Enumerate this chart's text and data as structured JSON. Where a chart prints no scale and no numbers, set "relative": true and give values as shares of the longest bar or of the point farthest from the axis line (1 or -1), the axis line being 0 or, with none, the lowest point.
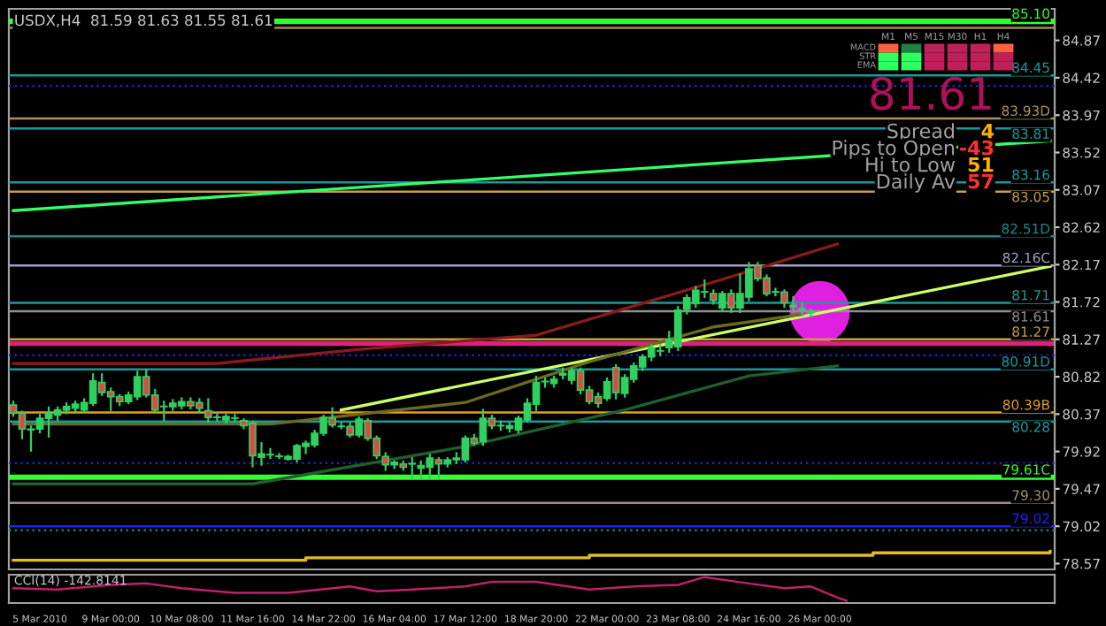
{
  "chart_data": [
    {
      "type": "candlestick",
      "title": "USDX,H4  81.59 81.63 81.55 81.61",
      "categories": [
        null,
        null,
        null,
        "5 Mar 2010",
        null,
        null,
        null,
        null,
        null,
        null,
        null,
        "9 Mar 00:00",
        null,
        null,
        null,
        null,
        null,
        null,
        null,
        "10 Mar 08:00",
        null,
        null,
        null,
        null,
        null,
        null,
        null,
        "11 Mar 16:00",
        null,
        null,
        null,
        null,
        null,
        null,
        null,
        "14 Mar 22:00",
        null,
        null,
        null,
        null,
        null,
        null,
        null,
        "16 Mar 04:00",
        null,
        null,
        null,
        null,
        null,
        null,
        null,
        "17 Mar 12:00",
        null,
        null,
        null,
        null,
        null,
        null,
        null,
        "18 Mar 20:00",
        null,
        null,
        null,
        null,
        null,
        null,
        null,
        "22 Mar 00:00",
        null,
        null,
        null,
        null,
        null,
        null,
        null,
        "23 Mar 08:00",
        null,
        null,
        null,
        null,
        null,
        null,
        null,
        "24 Mar 16:00",
        null,
        null,
        null,
        null,
        null,
        null,
        null,
        "26 Mar 00:00",
        null,
        null,
        null,
        null,
        null,
        null,
        null,
        null,
        null,
        null,
        null,
        null,
        null,
        null,
        null,
        null,
        null,
        null,
        null,
        null,
        null,
        null,
        null,
        null,
        null,
        null
      ],
      "colors": [
        "#e04848",
        "#e04848",
        "#e04848",
        "#30d060",
        "#30d060",
        "#30d060",
        "#30d060",
        "#30d060",
        "#30d060",
        "#30d060",
        "#e04848",
        "#e04848",
        "#e04848",
        "#30d060",
        "#30d060",
        "#e04848",
        "#e04848",
        "#30d060",
        "#30d060",
        "#30d060",
        "#e04848",
        "#e04848",
        "#e04848",
        "#30d060",
        "#30d060",
        "#30d060",
        "#e04848",
        "#e04848",
        "#30d060",
        "#30d060",
        "#30d060",
        "#30d060",
        "#30d060",
        "#30d060",
        "#30d060",
        "#30d060",
        "#e04848",
        "#30d060",
        "#e04848",
        "#30d060",
        "#e04848",
        "#e04848",
        "#e04848",
        "#30d060",
        "#e04848",
        "#30d060",
        "#30d060",
        "#30d060",
        "#e04848",
        "#30d060",
        "#30d060",
        "#30d060",
        "#e04848",
        "#30d060",
        "#e04848",
        "#30d060",
        "#30d060",
        "#30d060",
        "#30d060",
        "#30d060",
        "#30d060",
        "#30d060",
        "#30d060",
        "#30d060",
        "#e04848",
        "#e04848",
        "#e04848",
        "#30d060",
        "#e04848",
        "#30d060",
        "#30d060",
        "#30d060",
        "#30d060",
        "#30d060",
        "#30d060",
        "#30d060",
        "#30d060",
        "#30d060",
        "#e04848",
        "#e04848",
        "#30d060",
        "#e04848",
        "#30d060",
        "#30d060",
        "#e04848",
        "#e04848",
        "#30d060",
        "#e04848",
        "#e04848",
        "#e04848",
        "#30d060",
        null,
        null,
        null,
        null,
        null,
        null,
        null,
        null,
        null,
        null,
        null,
        null,
        null,
        null,
        null,
        null,
        null,
        null,
        null,
        null,
        null,
        null,
        null,
        null,
        null,
        null,
        null
      ],
      "ohlc": [
        [
          80.48,
          80.52,
          80.35,
          80.38
        ],
        [
          80.38,
          80.4,
          80.08,
          80.19
        ],
        [
          80.19,
          80.22,
          79.93,
          80.18
        ],
        [
          80.19,
          80.36,
          80.15,
          80.32
        ],
        [
          80.32,
          80.45,
          80.1,
          80.38
        ],
        [
          80.36,
          80.45,
          80.3,
          80.42
        ],
        [
          80.42,
          80.5,
          80.38,
          80.46
        ],
        [
          80.44,
          80.52,
          80.4,
          80.49
        ],
        [
          80.42,
          80.55,
          80.4,
          80.51
        ],
        [
          80.5,
          80.85,
          80.48,
          80.77
        ],
        [
          80.75,
          80.85,
          80.6,
          80.63
        ],
        [
          80.64,
          80.68,
          80.42,
          80.58
        ],
        [
          80.58,
          80.6,
          80.48,
          80.52
        ],
        [
          80.52,
          80.63,
          80.5,
          80.6
        ],
        [
          80.58,
          80.88,
          80.55,
          80.82
        ],
        [
          80.82,
          80.9,
          80.58,
          80.6
        ],
        [
          80.6,
          80.66,
          80.4,
          80.42
        ],
        [
          80.46,
          80.52,
          80.3,
          80.46
        ],
        [
          80.46,
          80.54,
          80.42,
          80.5
        ],
        [
          80.47,
          80.56,
          80.44,
          80.52
        ],
        [
          80.52,
          80.56,
          80.44,
          80.47
        ],
        [
          80.51,
          80.55,
          80.4,
          80.44
        ],
        [
          80.41,
          80.55,
          80.28,
          80.33
        ],
        [
          80.33,
          80.38,
          80.3,
          80.33
        ],
        [
          80.3,
          80.36,
          80.27,
          80.34
        ],
        [
          80.32,
          80.36,
          80.29,
          80.32
        ],
        [
          80.29,
          80.31,
          80.2,
          80.23
        ],
        [
          80.26,
          80.28,
          79.74,
          79.87
        ],
        [
          79.85,
          80.02,
          79.76,
          79.89
        ],
        [
          79.88,
          79.95,
          79.84,
          79.88
        ],
        [
          79.86,
          79.89,
          79.84,
          79.86
        ],
        [
          79.83,
          79.87,
          79.82,
          79.86
        ],
        [
          79.83,
          80.0,
          79.8,
          79.99
        ],
        [
          79.98,
          80.04,
          79.9,
          80.02
        ],
        [
          80.0,
          80.17,
          79.98,
          80.14
        ],
        [
          80.14,
          80.35,
          80.12,
          80.33
        ],
        [
          80.32,
          80.44,
          80.22,
          80.24
        ],
        [
          80.22,
          80.26,
          80.2,
          80.22
        ],
        [
          80.22,
          80.26,
          80.1,
          80.12
        ],
        [
          80.12,
          80.33,
          80.1,
          80.31
        ],
        [
          80.29,
          80.31,
          80.06,
          80.08
        ],
        [
          80.08,
          80.1,
          79.84,
          79.87
        ],
        [
          79.86,
          79.9,
          79.7,
          79.76
        ],
        [
          79.76,
          79.8,
          79.72,
          79.79
        ],
        [
          79.77,
          79.8,
          79.7,
          79.73
        ],
        [
          79.77,
          79.84,
          79.6,
          79.77
        ],
        [
          79.72,
          79.8,
          79.6,
          79.75
        ],
        [
          79.73,
          79.88,
          79.6,
          79.84
        ],
        [
          79.82,
          79.84,
          79.6,
          79.77
        ],
        [
          79.77,
          79.84,
          79.74,
          79.82
        ],
        [
          79.82,
          79.9,
          79.78,
          79.84
        ],
        [
          79.82,
          80.1,
          79.8,
          80.08
        ],
        [
          80.08,
          80.12,
          80.0,
          80.02
        ],
        [
          80.04,
          80.42,
          80.0,
          80.32
        ],
        [
          80.32,
          80.35,
          80.2,
          80.23
        ],
        [
          80.23,
          80.28,
          80.18,
          80.23
        ],
        [
          80.2,
          80.26,
          80.16,
          80.23
        ],
        [
          80.18,
          80.34,
          80.15,
          80.32
        ],
        [
          80.3,
          80.55,
          80.28,
          80.5
        ],
        [
          80.49,
          80.82,
          80.42,
          80.75
        ],
        [
          80.76,
          80.8,
          80.7,
          80.76
        ],
        [
          80.74,
          80.82,
          80.7,
          80.79
        ],
        [
          80.84,
          80.92,
          80.8,
          80.86
        ],
        [
          80.78,
          80.92,
          80.74,
          80.89
        ],
        [
          80.89,
          80.92,
          80.62,
          80.66
        ],
        [
          80.66,
          80.7,
          80.5,
          80.52
        ],
        [
          80.58,
          80.62,
          80.46,
          80.5
        ],
        [
          80.56,
          80.8,
          80.54,
          80.76
        ],
        [
          80.93,
          80.96,
          80.56,
          80.63
        ],
        [
          80.62,
          80.84,
          80.58,
          80.81
        ],
        [
          80.79,
          80.98,
          80.76,
          80.95
        ],
        [
          80.94,
          81.08,
          80.9,
          81.06
        ],
        [
          81.06,
          81.2,
          81.02,
          81.17
        ],
        [
          81.13,
          81.2,
          81.08,
          81.13
        ],
        [
          81.17,
          81.36,
          81.12,
          81.27
        ],
        [
          81.18,
          81.66,
          81.14,
          81.62
        ],
        [
          81.63,
          81.8,
          81.58,
          81.77
        ],
        [
          81.7,
          81.9,
          81.66,
          81.86
        ],
        [
          81.84,
          81.98,
          81.78,
          81.84
        ],
        [
          81.82,
          81.86,
          81.7,
          81.74
        ],
        [
          81.65,
          81.84,
          81.62,
          81.82
        ],
        [
          81.82,
          81.86,
          81.6,
          81.65
        ],
        [
          81.65,
          82.05,
          81.6,
          81.82
        ],
        [
          81.78,
          82.19,
          81.74,
          82.12
        ],
        [
          82.16,
          82.19,
          81.98,
          82.0
        ],
        [
          82.01,
          82.04,
          81.8,
          81.82
        ],
        [
          81.84,
          81.88,
          81.8,
          81.84
        ],
        [
          81.84,
          81.86,
          81.66,
          81.71
        ],
        [
          81.68,
          81.78,
          81.6,
          81.66
        ],
        [
          81.64,
          81.7,
          81.56,
          81.63
        ],
        [
          81.59,
          81.63,
          81.55,
          81.61
        ],
        null,
        null,
        null,
        null,
        null,
        null,
        null,
        null,
        null,
        null,
        null,
        null,
        null,
        null,
        null,
        null,
        null,
        null,
        null,
        null,
        null,
        null,
        null,
        null,
        null,
        null,
        null
      ],
      "series": [
        {
          "type": "line",
          "color": "#33ff66",
          "values": [
            82.82,
            null,
            null,
            null,
            null,
            null,
            null,
            null,
            null,
            null,
            null,
            null,
            null,
            null,
            null,
            null,
            null,
            null,
            null,
            null,
            null,
            null,
            null,
            null,
            null,
            null,
            null,
            null,
            null,
            null,
            null,
            null,
            null,
            null,
            null,
            null,
            null,
            null,
            null,
            null,
            null,
            null,
            null,
            null,
            null,
            null,
            null,
            null,
            null,
            null,
            null,
            null,
            null,
            null,
            null,
            null,
            null,
            null,
            null,
            null,
            null,
            null,
            null,
            null,
            null,
            null,
            null,
            null,
            null,
            null,
            null,
            null,
            null,
            null,
            null,
            null,
            null,
            null,
            null,
            null,
            null,
            null,
            null,
            null,
            null,
            null,
            null,
            null,
            null,
            null,
            null,
            null,
            null,
            null,
            null,
            null,
            null,
            null,
            null,
            null,
            null,
            null,
            null,
            null,
            null,
            null,
            null,
            null,
            null,
            null,
            null,
            null,
            null,
            null,
            null,
            null,
            null,
            83.66
          ]
        },
        {
          "type": "line",
          "color": "#ccff66",
          "values": [
            null,
            null,
            null,
            null,
            null,
            null,
            null,
            null,
            null,
            null,
            null,
            null,
            null,
            null,
            null,
            null,
            null,
            null,
            null,
            null,
            null,
            null,
            null,
            null,
            null,
            null,
            null,
            null,
            null,
            null,
            null,
            null,
            null,
            null,
            null,
            null,
            null,
            80.42,
            null,
            null,
            null,
            null,
            null,
            null,
            null,
            null,
            null,
            null,
            null,
            null,
            null,
            null,
            null,
            null,
            null,
            null,
            null,
            null,
            null,
            null,
            null,
            null,
            null,
            null,
            null,
            null,
            null,
            null,
            null,
            null,
            null,
            null,
            null,
            null,
            null,
            null,
            null,
            null,
            null,
            null,
            null,
            null,
            null,
            null,
            null,
            null,
            null,
            null,
            null,
            null,
            null,
            null,
            null,
            null,
            null,
            null,
            null,
            null,
            null,
            null,
            null,
            null,
            null,
            null,
            null,
            null,
            null,
            null,
            null,
            null,
            null,
            null,
            null,
            null,
            null,
            null,
            null,
            82.15
          ]
        },
        {
          "type": "line",
          "color": "#8b1a1a",
          "values": [
            80.98,
            null,
            null,
            null,
            null,
            null,
            null,
            null,
            null,
            null,
            null,
            null,
            null,
            null,
            null,
            null,
            null,
            null,
            null,
            null,
            null,
            null,
            null,
            80.98,
            null,
            null,
            null,
            null,
            null,
            null,
            null,
            null,
            null,
            null,
            null,
            null,
            null,
            null,
            null,
            81.15,
            null,
            null,
            null,
            null,
            null,
            null,
            null,
            null,
            null,
            null,
            null,
            null,
            null,
            null,
            null,
            null,
            null,
            null,
            null,
            81.32,
            null,
            null,
            null,
            null,
            null,
            null,
            null,
            null,
            null,
            null,
            null,
            null,
            null,
            null,
            null,
            null,
            null,
            null,
            null,
            81.96,
            null,
            null,
            null,
            null,
            null,
            null,
            null,
            null,
            null,
            null,
            null,
            null,
            null,
            82.42,
            null,
            null,
            null,
            null,
            null,
            null,
            null,
            null,
            null,
            null,
            null,
            null,
            null,
            null,
            null,
            null,
            null,
            null,
            null,
            null,
            null,
            null,
            null,
            null
          ]
        },
        {
          "type": "line",
          "color": "#6b6b20",
          "values": [
            80.25,
            null,
            null,
            null,
            null,
            null,
            null,
            null,
            null,
            null,
            null,
            null,
            null,
            null,
            null,
            null,
            null,
            null,
            null,
            null,
            null,
            null,
            null,
            null,
            null,
            null,
            null,
            null,
            null,
            80.25,
            null,
            null,
            null,
            null,
            null,
            null,
            null,
            null,
            null,
            null,
            null,
            null,
            null,
            null,
            null,
            null,
            null,
            null,
            null,
            null,
            null,
            80.51,
            null,
            null,
            null,
            null,
            null,
            null,
            null,
            null,
            null,
            null,
            null,
            null,
            null,
            81.0,
            null,
            null,
            null,
            null,
            null,
            null,
            null,
            null,
            null,
            null,
            null,
            null,
            null,
            81.42,
            null,
            null,
            null,
            null,
            null,
            null,
            null,
            null,
            null,
            81.57,
            null,
            null,
            null,
            null,
            null,
            null,
            null,
            null,
            null,
            null,
            null,
            null,
            null,
            null,
            null,
            null,
            null,
            null,
            null,
            null,
            null,
            null,
            null,
            null,
            null,
            null,
            null,
            null
          ]
        },
        {
          "type": "line",
          "color": "#1f5f2f",
          "values": [
            79.53,
            null,
            null,
            null,
            null,
            null,
            null,
            null,
            null,
            null,
            null,
            null,
            null,
            null,
            null,
            null,
            null,
            null,
            null,
            null,
            null,
            null,
            null,
            null,
            null,
            null,
            null,
            79.53,
            null,
            null,
            null,
            null,
            null,
            null,
            null,
            null,
            null,
            null,
            null,
            null,
            null,
            null,
            null,
            null,
            null,
            null,
            null,
            null,
            null,
            null,
            null,
            79.98,
            null,
            null,
            null,
            null,
            null,
            null,
            null,
            null,
            null,
            null,
            null,
            null,
            null,
            null,
            null,
            null,
            null,
            80.42,
            null,
            null,
            null,
            null,
            null,
            null,
            null,
            null,
            null,
            null,
            null,
            null,
            null,
            80.83,
            null,
            null,
            null,
            null,
            null,
            null,
            null,
            null,
            null,
            80.95,
            null,
            null,
            null,
            null,
            null,
            null,
            null,
            null,
            null,
            null,
            null,
            null,
            null,
            null,
            null,
            null,
            null,
            null,
            null,
            null,
            null,
            null,
            null,
            null
          ]
        },
        {
          "type": "step",
          "color": "#e0c020",
          "values": [
            78.61,
            null,
            null,
            null,
            null,
            null,
            null,
            null,
            null,
            null,
            null,
            null,
            null,
            null,
            null,
            null,
            null,
            null,
            null,
            null,
            null,
            null,
            null,
            null,
            null,
            null,
            null,
            null,
            null,
            null,
            null,
            null,
            null,
            78.64,
            null,
            null,
            null,
            null,
            null,
            null,
            null,
            null,
            null,
            null,
            null,
            null,
            null,
            null,
            null,
            null,
            null,
            null,
            null,
            null,
            null,
            null,
            null,
            null,
            null,
            null,
            null,
            null,
            null,
            null,
            null,
            78.67,
            null,
            null,
            null,
            null,
            null,
            null,
            null,
            null,
            null,
            null,
            null,
            null,
            null,
            null,
            null,
            null,
            null,
            null,
            null,
            null,
            null,
            null,
            null,
            null,
            null,
            null,
            null,
            null,
            null,
            null,
            null,
            78.7,
            null,
            null,
            null,
            null,
            null,
            null,
            null,
            null,
            null,
            null,
            null,
            null,
            null,
            null,
            null,
            null,
            null,
            null,
            null,
            78.72
          ]
        }
      ],
      "ref_lines": [
        {
          "axis": "y",
          "value": 85.1,
          "label": "85.10",
          "color": "#33ff33",
          "line_style": "solid"
        },
        {
          "axis": "y",
          "value": 85.02,
          "label": null,
          "color": "#a08860",
          "line_style": "solid"
        },
        {
          "axis": "y",
          "value": 84.45,
          "label": "84.45",
          "color": "#1a9a9a",
          "line_style": "solid"
        },
        {
          "axis": "y",
          "value": 84.32,
          "label": null,
          "color": "#2020cc",
          "line_style": "dotted"
        },
        {
          "axis": "y",
          "value": 83.93,
          "label": "83.93D",
          "color": "#b09060",
          "line_style": "solid"
        },
        {
          "axis": "y",
          "value": 83.81,
          "label": "83.81",
          "color": "#1a9a9a",
          "line_style": "solid"
        },
        {
          "axis": "y",
          "value": 83.16,
          "label": "83.16",
          "color": "#1a9a9a",
          "line_style": "solid"
        },
        {
          "axis": "y",
          "value": 83.05,
          "label": "83.05",
          "color": "#c8a040",
          "line_style": "solid"
        },
        {
          "axis": "y",
          "value": 82.51,
          "label": "82.51D",
          "color": "#1a8a8a",
          "line_style": "solid"
        },
        {
          "axis": "y",
          "value": 82.16,
          "label": "82.16C",
          "color": "#a0a0c8",
          "line_style": "solid"
        },
        {
          "axis": "y",
          "value": 81.71,
          "label": "81.71",
          "color": "#1a9a9a",
          "line_style": "solid"
        },
        {
          "axis": "y",
          "value": 81.61,
          "label": "81.61",
          "color": "#909090",
          "line_style": "solid"
        },
        {
          "axis": "y",
          "value": 81.27,
          "label": "81.27",
          "color": "#c8a040",
          "line_style": "solid"
        },
        {
          "axis": "y",
          "value": 81.08,
          "label": null,
          "color": "#2020cc",
          "line_style": "dotted"
        },
        {
          "axis": "y",
          "value": 80.91,
          "label": "80.91D",
          "color": "#1a9a9a",
          "line_style": "solid"
        },
        {
          "axis": "y",
          "value": 80.39,
          "label": "80.39B",
          "color": "#e0a020",
          "line_style": "solid"
        },
        {
          "axis": "y",
          "value": 80.28,
          "label": "80.28",
          "color": "#1a9a9a",
          "line_style": "solid"
        },
        {
          "axis": "y",
          "value": 79.78,
          "label": null,
          "color": "#2020cc",
          "line_style": "dotted"
        },
        {
          "axis": "y",
          "value": 79.61,
          "label": "79.61C",
          "color": "#33ff33",
          "line_style": "solid"
        },
        {
          "axis": "y",
          "value": 79.3,
          "label": "79.30",
          "color": "#a09070",
          "line_style": "solid"
        },
        {
          "axis": "y",
          "value": 79.02,
          "label": "79.02",
          "color": "#2020ff",
          "line_style": "solid"
        },
        {
          "axis": "y",
          "value": 78.97,
          "label": null,
          "color": "#1a7a7a",
          "line_style": "dotted"
        }
      ],
      "bands": [
        {
          "axis": "y",
          "from": 81.19,
          "to": 81.25,
          "label": null,
          "color": "#e0207a"
        }
      ],
      "annotations": [
        "81.61",
        "Spread",
        "4",
        "Pips to Open",
        "-43",
        "Hi to Low",
        "51",
        "Daily Av",
        "57",
        "M1",
        "M5",
        "M15",
        "M30",
        "H1",
        "H4",
        "MACD",
        "STR",
        "EMA"
      ],
      "ylim": [
        78.5,
        85.25
      ],
      "yticks": [
        78.57,
        79.02,
        79.47,
        79.92,
        80.37,
        80.82,
        81.27,
        81.72,
        82.17,
        82.62,
        83.07,
        83.52,
        83.97,
        84.42,
        84.87
      ],
      "grid": false
    },
    {
      "type": "line",
      "relative": true,
      "annotations": [
        "CCI(14) -142.8141"
      ],
      "categories": [
        null,
        null,
        null,
        null,
        null,
        null,
        null,
        null,
        null,
        null,
        null,
        null,
        null,
        null,
        null,
        null,
        null,
        null,
        null,
        null,
        null,
        null,
        null,
        null,
        null,
        null,
        null,
        null,
        null,
        null,
        null,
        null,
        null,
        null,
        null,
        null,
        null,
        null,
        null,
        null,
        null,
        null,
        null,
        null,
        null,
        null,
        null,
        null,
        null,
        null,
        null,
        null,
        null,
        null,
        null,
        null,
        null,
        null,
        null,
        null,
        null,
        null,
        null,
        null,
        null,
        null,
        null,
        null,
        null,
        null,
        null,
        null,
        null,
        null,
        null,
        null,
        null,
        null,
        null,
        null,
        null,
        null,
        null,
        null,
        null,
        null,
        null,
        null,
        null,
        null,
        null,
        null,
        null,
        null,
        null,
        null,
        null,
        null,
        null,
        null,
        null,
        null,
        null,
        null,
        null,
        null,
        null,
        null,
        null,
        null,
        null,
        null,
        null,
        null,
        null,
        null,
        null,
        null
      ],
      "series": [
        {
          "color": "#c0206a",
          "values": [
            0.53,
            null,
            null,
            null,
            null,
            0.47,
            null,
            null,
            null,
            null,
            null,
            0.67,
            null,
            null,
            null,
            0.73,
            null,
            null,
            null,
            0.53,
            null,
            null,
            null,
            null,
            null,
            0.33,
            null,
            null,
            null,
            null,
            null,
            0.33,
            null,
            null,
            null,
            null,
            null,
            null,
            0.6,
            null,
            null,
            0.4,
            null,
            null,
            null,
            0.47,
            null,
            null,
            null,
            null,
            null,
            0.6,
            null,
            null,
            0.8,
            null,
            null,
            null,
            null,
            0.8,
            null,
            null,
            null,
            null,
            null,
            0.47,
            null,
            null,
            null,
            null,
            0.6,
            null,
            null,
            null,
            null,
            0.67,
            null,
            null,
            1,
            null,
            null,
            null,
            null,
            0.73,
            null,
            null,
            null,
            0.53,
            null,
            null,
            0.6,
            null,
            null,
            0.13,
            0,
            null,
            null,
            null,
            null,
            null,
            null,
            null,
            null,
            null,
            null,
            null,
            null,
            null,
            null,
            null,
            null,
            null,
            null,
            null,
            null,
            null,
            null,
            null
          ]
        }
      ],
      "grid": false
    }
  ]
}
